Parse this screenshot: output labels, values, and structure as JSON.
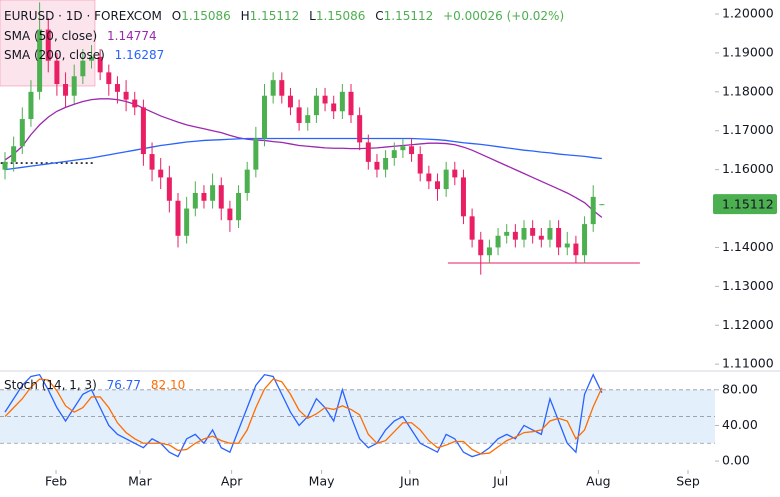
{
  "header": {
    "symbol": "EURUSD · 1D · FOREXCOM",
    "o": "O",
    "h": "H",
    "l": "L",
    "c": "C",
    "change": "+0.00026 (+0.02%)"
  },
  "chart_data": [
    {
      "type": "candlestick",
      "up_color": "#4caf50",
      "down_color": "#e91e63",
      "open": [
        1.16,
        1.162,
        1.166,
        1.173,
        1.18,
        1.196,
        1.188,
        1.182,
        1.179,
        1.184,
        1.188,
        1.189,
        1.185,
        1.182,
        1.18,
        1.178,
        1.176,
        1.164,
        1.16,
        1.158,
        1.152,
        1.143,
        1.15,
        1.154,
        1.152,
        1.156,
        1.15,
        1.147,
        1.154,
        1.16,
        1.168,
        1.179,
        1.183,
        1.179,
        1.176,
        1.172,
        1.174,
        1.179,
        1.177,
        1.175,
        1.18,
        1.174,
        1.167,
        1.162,
        1.16,
        1.163,
        1.165,
        1.166,
        1.164,
        1.159,
        1.157,
        1.155,
        1.16,
        1.158,
        1.148,
        1.142,
        1.138,
        1.14,
        1.143,
        1.144,
        1.142,
        1.145,
        1.143,
        1.142,
        1.145,
        1.14,
        1.141,
        1.138,
        1.146,
        1.15086
      ],
      "high": [
        1.1645,
        1.1685,
        1.176,
        1.183,
        1.203,
        1.199,
        1.19,
        1.185,
        1.187,
        1.191,
        1.192,
        1.191,
        1.187,
        1.184,
        1.183,
        1.18,
        1.178,
        1.167,
        1.163,
        1.161,
        1.154,
        1.153,
        1.157,
        1.156,
        1.159,
        1.158,
        1.152,
        1.156,
        1.162,
        1.171,
        1.182,
        1.185,
        1.185,
        1.181,
        1.178,
        1.176,
        1.181,
        1.181,
        1.179,
        1.182,
        1.182,
        1.176,
        1.169,
        1.164,
        1.165,
        1.167,
        1.168,
        1.168,
        1.166,
        1.161,
        1.159,
        1.162,
        1.162,
        1.16,
        1.15,
        1.144,
        1.142,
        1.145,
        1.146,
        1.146,
        1.147,
        1.147,
        1.145,
        1.147,
        1.147,
        1.144,
        1.143,
        1.148,
        1.156,
        1.15112
      ],
      "low": [
        1.1575,
        1.1595,
        1.164,
        1.171,
        1.178,
        1.185,
        1.179,
        1.176,
        1.177,
        1.182,
        1.186,
        1.183,
        1.179,
        1.177,
        1.175,
        1.174,
        1.161,
        1.157,
        1.155,
        1.149,
        1.14,
        1.141,
        1.148,
        1.15,
        1.15,
        1.147,
        1.144,
        1.145,
        1.152,
        1.158,
        1.166,
        1.177,
        1.177,
        1.174,
        1.17,
        1.17,
        1.172,
        1.175,
        1.173,
        1.173,
        1.172,
        1.165,
        1.16,
        1.158,
        1.158,
        1.161,
        1.163,
        1.162,
        1.157,
        1.155,
        1.152,
        1.153,
        1.156,
        1.146,
        1.14,
        1.133,
        1.136,
        1.138,
        1.141,
        1.14,
        1.14,
        1.141,
        1.14,
        1.14,
        1.138,
        1.138,
        1.136,
        1.136,
        1.144,
        1.15086
      ],
      "close": [
        1.162,
        1.166,
        1.173,
        1.18,
        1.196,
        1.188,
        1.182,
        1.179,
        1.184,
        1.188,
        1.189,
        1.185,
        1.182,
        1.18,
        1.178,
        1.176,
        1.164,
        1.16,
        1.158,
        1.152,
        1.143,
        1.15,
        1.154,
        1.152,
        1.156,
        1.15,
        1.147,
        1.154,
        1.16,
        1.168,
        1.179,
        1.183,
        1.179,
        1.176,
        1.172,
        1.174,
        1.179,
        1.177,
        1.175,
        1.18,
        1.174,
        1.167,
        1.162,
        1.16,
        1.163,
        1.165,
        1.166,
        1.164,
        1.159,
        1.157,
        1.155,
        1.16,
        1.158,
        1.148,
        1.142,
        1.138,
        1.14,
        1.143,
        1.144,
        1.142,
        1.145,
        1.143,
        1.142,
        1.145,
        1.14,
        1.141,
        1.138,
        1.146,
        1.153,
        1.15112
      ],
      "series": [
        {
          "name": "SMA (50, close)",
          "color": "#9c27b0",
          "values": [
            1.1625,
            1.164,
            1.166,
            1.169,
            1.1715,
            1.1735,
            1.175,
            1.176,
            1.1768,
            1.1775,
            1.178,
            1.1782,
            1.1782,
            1.178,
            1.1775,
            1.1768,
            1.1758,
            1.1748,
            1.1738,
            1.173,
            1.1722,
            1.1715,
            1.171,
            1.1705,
            1.17,
            1.1695,
            1.1688,
            1.1682,
            1.1678,
            1.1676,
            1.1675,
            1.1672,
            1.167,
            1.1666,
            1.1662,
            1.166,
            1.1658,
            1.1656,
            1.1655,
            1.1655,
            1.1654,
            1.1654,
            1.1655,
            1.1656,
            1.1658,
            1.166,
            1.1662,
            1.1664,
            1.1666,
            1.1668,
            1.1668,
            1.1667,
            1.1664,
            1.1658,
            1.165,
            1.164,
            1.163,
            1.162,
            1.161,
            1.16,
            1.159,
            1.158,
            1.157,
            1.156,
            1.155,
            1.154,
            1.1528,
            1.1515,
            1.1495,
            1.14774
          ]
        },
        {
          "name": "SMA (200, close)",
          "color": "#2962ff",
          "values": [
            1.16,
            1.1603,
            1.1606,
            1.1609,
            1.1612,
            1.1615,
            1.1618,
            1.1621,
            1.1624,
            1.1627,
            1.163,
            1.1634,
            1.1638,
            1.1642,
            1.1646,
            1.165,
            1.1654,
            1.1658,
            1.1662,
            1.1665,
            1.1668,
            1.1671,
            1.1673,
            1.1675,
            1.1676,
            1.1677,
            1.1678,
            1.1679,
            1.168,
            1.168,
            1.168,
            1.168,
            1.168,
            1.168,
            1.168,
            1.168,
            1.168,
            1.168,
            1.168,
            1.168,
            1.168,
            1.168,
            1.168,
            1.168,
            1.168,
            1.168,
            1.168,
            1.168,
            1.1679,
            1.1678,
            1.1677,
            1.1675,
            1.1672,
            1.1669,
            1.1667,
            1.1665,
            1.1662,
            1.1659,
            1.1656,
            1.1653,
            1.165,
            1.1648,
            1.1645,
            1.1643,
            1.164,
            1.1638,
            1.1636,
            1.1634,
            1.1631,
            1.16287
          ]
        }
      ],
      "ylim": [
        1.1085,
        1.2036
      ],
      "yticks": [
        {
          "value": 1.11,
          "label": "1.11000"
        },
        {
          "value": 1.12,
          "label": "1.12000"
        },
        {
          "value": 1.13,
          "label": "1.13000"
        },
        {
          "value": 1.14,
          "label": "1.14000"
        },
        {
          "value": 1.15,
          "label": "1.15000"
        },
        {
          "value": 1.16,
          "label": "1.16000"
        },
        {
          "value": 1.17,
          "label": "1.17000"
        },
        {
          "value": 1.18,
          "label": "1.18000"
        },
        {
          "value": 1.19,
          "label": "1.19000"
        },
        {
          "value": 1.2,
          "label": "1.20000"
        }
      ],
      "hlines": [
        {
          "value": 1.1617,
          "from": -0.5,
          "to": 10.4,
          "color": "#131722",
          "style": "dotted"
        },
        {
          "value": 1.136,
          "from": 51.2,
          "to": 73.4,
          "color": "#e91e63",
          "style": "solid"
        }
      ],
      "zone": {
        "ylim": [
          1.1815,
          1.2036
        ],
        "from": -0.578,
        "to": 10.4,
        "color": "#fce4ec"
      }
    },
    {
      "type": "line",
      "title": "Stoch (14, 1, 3)",
      "series": [
        {
          "color": "#2962ff",
          "values": [
            55,
            70,
            85,
            95,
            97,
            80,
            60,
            45,
            60,
            75,
            80,
            60,
            40,
            30,
            25,
            20,
            15,
            25,
            20,
            10,
            5,
            25,
            30,
            20,
            35,
            15,
            10,
            35,
            60,
            85,
            97,
            95,
            75,
            55,
            40,
            50,
            70,
            60,
            45,
            80,
            50,
            25,
            15,
            20,
            35,
            45,
            50,
            35,
            20,
            15,
            10,
            30,
            25,
            10,
            5,
            8,
            15,
            25,
            30,
            25,
            40,
            35,
            30,
            70,
            45,
            20,
            10,
            75,
            97,
            76.77
          ]
        },
        {
          "color": "#ff6d00",
          "legend_label": "82.10",
          "values": [
            50,
            60,
            70,
            83,
            92,
            91,
            79,
            62,
            55,
            60,
            72,
            72,
            60,
            43,
            32,
            25,
            20,
            20,
            20,
            18,
            12,
            13,
            20,
            25,
            28,
            23,
            20,
            20,
            35,
            60,
            81,
            92,
            89,
            75,
            57,
            48,
            53,
            60,
            58,
            62,
            58,
            52,
            30,
            20,
            23,
            33,
            43,
            43,
            35,
            23,
            15,
            18,
            22,
            22,
            13,
            8,
            9,
            16,
            23,
            27,
            32,
            33,
            35,
            45,
            48,
            45,
            25,
            35,
            61,
            82.1
          ]
        }
      ],
      "ylim": [
        -10,
        100
      ],
      "yticks": [
        {
          "value": 0,
          "label": "0.00"
        },
        {
          "value": 40,
          "label": "40.00"
        },
        {
          "value": 80,
          "label": "80.00"
        }
      ],
      "band": [
        20,
        80
      ],
      "band_color": "#e3f0fc",
      "levels": [
        80,
        50,
        20
      ],
      "xlim": [
        -0.578,
        82.08
      ],
      "xticks": [
        {
          "value": 5.9,
          "label": "Feb"
        },
        {
          "value": 15.6,
          "label": "Mar"
        },
        {
          "value": 26.2,
          "label": "Apr"
        },
        {
          "value": 36.6,
          "label": "May"
        },
        {
          "value": 46.8,
          "label": "Jun"
        },
        {
          "value": 57.3,
          "label": "Jul"
        },
        {
          "value": 68.6,
          "label": "Aug"
        },
        {
          "value": 78.96,
          "label": "Sep"
        }
      ]
    }
  ]
}
